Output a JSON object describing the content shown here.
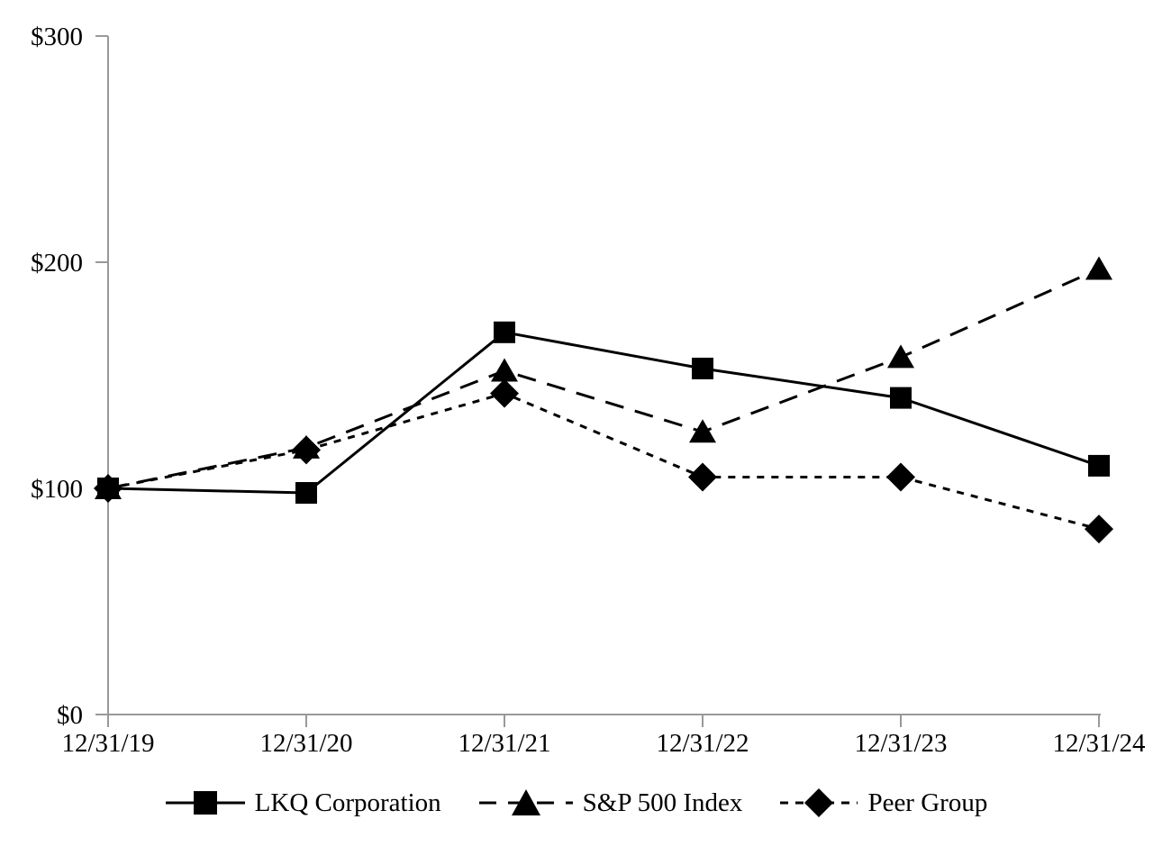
{
  "chart_data": {
    "type": "line",
    "title": "",
    "xlabel": "",
    "ylabel": "",
    "x": [
      "12/31/19",
      "12/31/20",
      "12/31/21",
      "12/31/22",
      "12/31/23",
      "12/31/24"
    ],
    "series": [
      {
        "name": "LKQ Corporation",
        "marker": "square",
        "line": "solid",
        "values": [
          100,
          98,
          169,
          153,
          140,
          110
        ]
      },
      {
        "name": "S&P 500 Index",
        "marker": "triangle",
        "line": "long-dash",
        "values": [
          100,
          118,
          152,
          125,
          158,
          197
        ]
      },
      {
        "name": "Peer Group",
        "marker": "diamond",
        "line": "short-dash",
        "values": [
          100,
          117,
          142,
          105,
          105,
          82
        ]
      }
    ],
    "y_ticks": [
      {
        "label": "$0",
        "value": 0
      },
      {
        "label": "$100",
        "value": 100
      },
      {
        "label": "$200",
        "value": 200
      },
      {
        "label": "$300",
        "value": 300
      }
    ],
    "ylim": [
      0,
      300
    ],
    "grid": false,
    "legend_position": "bottom",
    "colors": {
      "series": "#000000",
      "axis": "#999999",
      "text": "#000000",
      "background": "#ffffff"
    }
  }
}
